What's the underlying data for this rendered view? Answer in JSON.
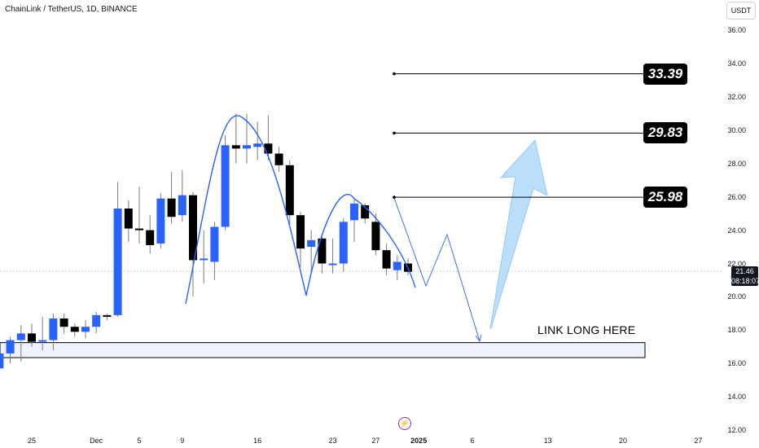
{
  "header": {
    "title": "ChainLink / TetherUS, 1D, BINANCE",
    "currency": "USDT"
  },
  "colors": {
    "bull": "#2962ff",
    "bear": "#000000",
    "curve": "#2962ff",
    "arrow_fill": "#bbdefb",
    "arrow_stroke": "#90caf9",
    "zone_fill": "#eef3ff"
  },
  "price": {
    "current": "21.46",
    "countdown": "08:18:07"
  },
  "targets": [
    {
      "label": "33.39",
      "value": 33.39
    },
    {
      "label": "29.83",
      "value": 29.83
    },
    {
      "label": "25.98",
      "value": 25.98
    }
  ],
  "annotation": "LINK LONG HERE",
  "flash_icon": "lightning-icon",
  "chart_data": {
    "type": "candlestick",
    "y_axis_ticks": [
      "36.00",
      "34.00",
      "32.00",
      "30.00",
      "28.00",
      "26.00",
      "24.00",
      "22.00",
      "20.00",
      "18.00",
      "16.00",
      "14.00",
      "12.00"
    ],
    "ylim": [
      12,
      36.6
    ],
    "x_axis_ticks": [
      "25",
      "Dec",
      "5",
      "9",
      "16",
      "23",
      "27",
      "2025",
      "6",
      "13",
      "20",
      "27"
    ],
    "x_tick_days": [
      0,
      6,
      10,
      14,
      21,
      28,
      32,
      36,
      41,
      48,
      55,
      62
    ],
    "support_zone": [
      16.35,
      17.25
    ],
    "candles": [
      {
        "day": -3,
        "o": 15.7,
        "h": 17.0,
        "l": 14.9,
        "c": 16.6
      },
      {
        "day": -2,
        "o": 16.6,
        "h": 17.6,
        "l": 16.0,
        "c": 17.4
      },
      {
        "day": -1,
        "o": 17.4,
        "h": 18.3,
        "l": 16.1,
        "c": 17.8
      },
      {
        "day": 0,
        "o": 17.8,
        "h": 18.4,
        "l": 17.0,
        "c": 17.3
      },
      {
        "day": 1,
        "o": 17.3,
        "h": 18.8,
        "l": 16.8,
        "c": 17.4
      },
      {
        "day": 2,
        "o": 17.4,
        "h": 19.0,
        "l": 16.8,
        "c": 18.7
      },
      {
        "day": 3,
        "o": 18.7,
        "h": 19.0,
        "l": 17.8,
        "c": 18.2
      },
      {
        "day": 4,
        "o": 18.2,
        "h": 18.4,
        "l": 17.6,
        "c": 17.9
      },
      {
        "day": 5,
        "o": 17.9,
        "h": 18.6,
        "l": 17.5,
        "c": 18.2
      },
      {
        "day": 6,
        "o": 18.2,
        "h": 19.1,
        "l": 17.8,
        "c": 18.9
      },
      {
        "day": 7,
        "o": 18.9,
        "h": 19.0,
        "l": 18.6,
        "c": 18.85
      },
      {
        "day": 8,
        "o": 18.9,
        "h": 26.9,
        "l": 18.8,
        "c": 25.3
      },
      {
        "day": 9,
        "o": 25.3,
        "h": 25.8,
        "l": 23.3,
        "c": 24.1
      },
      {
        "day": 10,
        "o": 24.1,
        "h": 26.6,
        "l": 23.2,
        "c": 24.0
      },
      {
        "day": 11,
        "o": 24.0,
        "h": 24.9,
        "l": 22.6,
        "c": 23.1
      },
      {
        "day": 12,
        "o": 23.2,
        "h": 26.2,
        "l": 22.9,
        "c": 25.9
      },
      {
        "day": 13,
        "o": 25.9,
        "h": 27.5,
        "l": 24.4,
        "c": 24.8
      },
      {
        "day": 14,
        "o": 24.9,
        "h": 27.6,
        "l": 24.5,
        "c": 26.1
      },
      {
        "day": 15,
        "o": 26.1,
        "h": 26.3,
        "l": 20.0,
        "c": 22.2
      },
      {
        "day": 16,
        "o": 22.2,
        "h": 24.0,
        "l": 20.8,
        "c": 22.3
      },
      {
        "day": 17,
        "o": 22.1,
        "h": 24.5,
        "l": 21.0,
        "c": 24.2
      },
      {
        "day": 18,
        "o": 24.2,
        "h": 29.7,
        "l": 24.0,
        "c": 29.1
      },
      {
        "day": 19,
        "o": 29.1,
        "h": 31.0,
        "l": 28.0,
        "c": 28.9
      },
      {
        "day": 20,
        "o": 28.9,
        "h": 31.0,
        "l": 28.0,
        "c": 29.1
      },
      {
        "day": 21,
        "o": 29.0,
        "h": 30.5,
        "l": 28.2,
        "c": 29.2
      },
      {
        "day": 22,
        "o": 29.2,
        "h": 30.9,
        "l": 28.2,
        "c": 28.6
      },
      {
        "day": 23,
        "o": 28.6,
        "h": 29.0,
        "l": 27.5,
        "c": 27.9
      },
      {
        "day": 24,
        "o": 27.9,
        "h": 28.2,
        "l": 24.3,
        "c": 24.9
      },
      {
        "day": 25,
        "o": 24.9,
        "h": 25.1,
        "l": 21.8,
        "c": 22.9
      },
      {
        "day": 26,
        "o": 23.0,
        "h": 24.0,
        "l": 21.5,
        "c": 23.4
      },
      {
        "day": 27,
        "o": 23.5,
        "h": 23.6,
        "l": 21.4,
        "c": 22.0
      },
      {
        "day": 28,
        "o": 22.0,
        "h": 23.5,
        "l": 21.4,
        "c": 22.0
      },
      {
        "day": 29,
        "o": 22.0,
        "h": 24.7,
        "l": 21.5,
        "c": 24.5
      },
      {
        "day": 30,
        "o": 24.6,
        "h": 25.9,
        "l": 23.3,
        "c": 25.6
      },
      {
        "day": 31,
        "o": 25.5,
        "h": 25.6,
        "l": 24.4,
        "c": 24.7
      },
      {
        "day": 32,
        "o": 24.5,
        "h": 25.0,
        "l": 22.5,
        "c": 22.8
      },
      {
        "day": 33,
        "o": 22.8,
        "h": 23.2,
        "l": 21.3,
        "c": 21.7
      },
      {
        "day": 34,
        "o": 21.6,
        "h": 22.5,
        "l": 21.0,
        "c": 22.1
      },
      {
        "day": 35,
        "o": 22.0,
        "h": 22.3,
        "l": 21.3,
        "c": 21.5
      }
    ]
  }
}
